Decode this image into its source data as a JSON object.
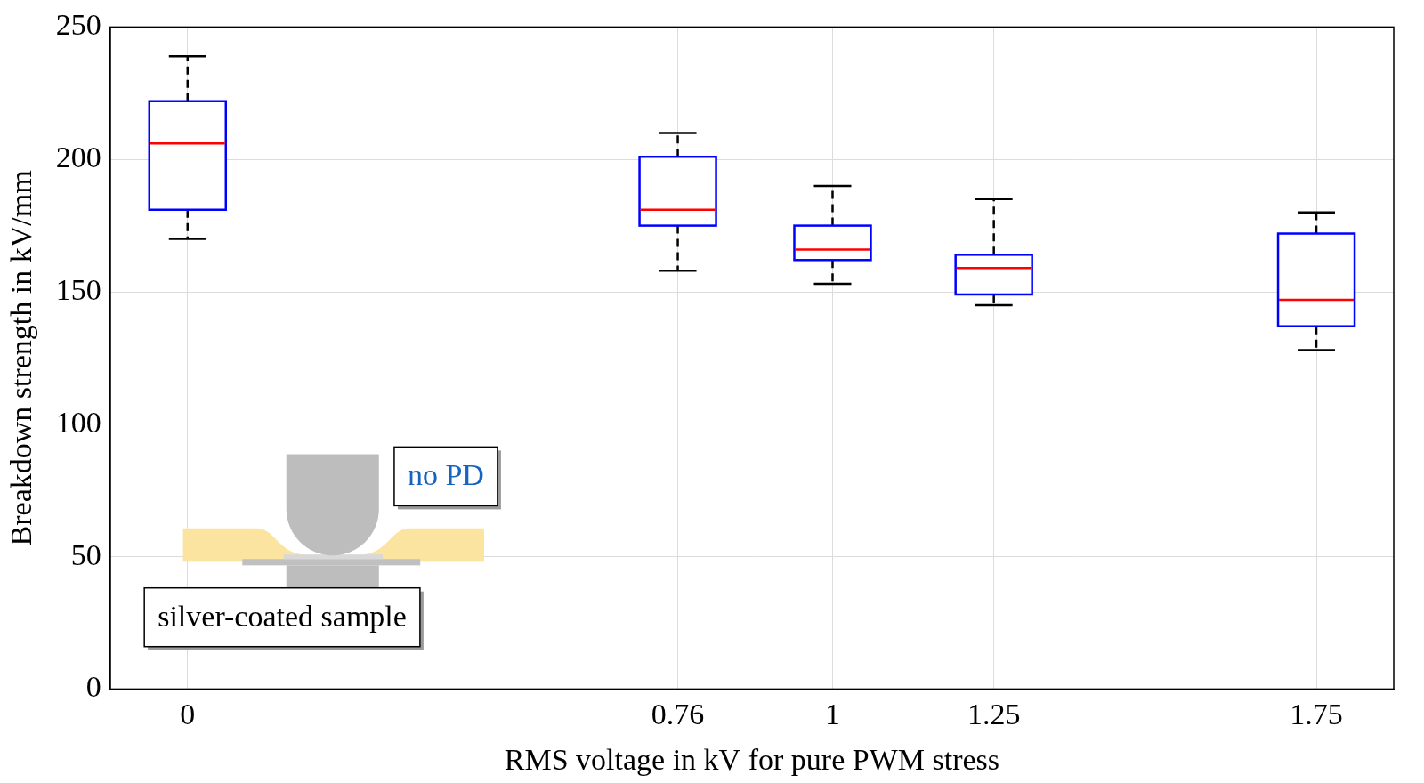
{
  "chart_data": {
    "type": "box",
    "x_label": "RMS voltage in kV for pure PWM stress",
    "y_label": "Breakdown strength in kV/mm",
    "x": [
      0,
      0.76,
      1,
      1.25,
      1.75
    ],
    "whisker_low": [
      170,
      158,
      153,
      145,
      128
    ],
    "q1": [
      181,
      175,
      162,
      149,
      137
    ],
    "median": [
      206,
      181,
      166,
      159,
      147
    ],
    "q3": [
      222,
      201,
      175,
      164,
      172
    ],
    "whisker_high": [
      239,
      210,
      190,
      185,
      180
    ],
    "color": "#0000ff",
    "xlim": [
      -0.12,
      1.87
    ],
    "xticks": [
      0,
      0.76,
      1,
      1.25,
      1.75
    ],
    "ylim": [
      0,
      250
    ],
    "yticks": [
      0,
      50,
      100,
      150,
      200,
      250
    ],
    "grid": true,
    "annotations": [
      {
        "text": "no PD"
      },
      {
        "text": "silver-coated sample"
      }
    ]
  }
}
